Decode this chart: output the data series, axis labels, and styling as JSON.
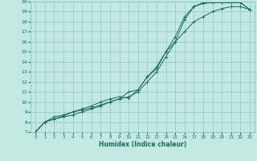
{
  "title": "",
  "xlabel": "Humidex (Indice chaleur)",
  "ylabel": "",
  "bg_color": "#c2e8e2",
  "grid_color": "#8fc8c0",
  "line_color": "#1a6b60",
  "xlim": [
    -0.5,
    23.5
  ],
  "ylim": [
    7,
    20
  ],
  "xticks": [
    0,
    1,
    2,
    3,
    4,
    5,
    6,
    7,
    8,
    9,
    10,
    11,
    12,
    13,
    14,
    15,
    16,
    17,
    18,
    19,
    20,
    21,
    22,
    23
  ],
  "yticks": [
    7,
    8,
    9,
    10,
    11,
    12,
    13,
    14,
    15,
    16,
    17,
    18,
    19,
    20
  ],
  "curve1_x": [
    0,
    1,
    2,
    3,
    4,
    5,
    6,
    7,
    8,
    9,
    10,
    11,
    12,
    13,
    14,
    15,
    16,
    17,
    18,
    19,
    20,
    21,
    22,
    23
  ],
  "curve1_y": [
    7.0,
    8.0,
    8.3,
    8.5,
    8.7,
    9.0,
    9.3,
    9.6,
    10.0,
    10.3,
    10.5,
    11.0,
    12.0,
    13.0,
    14.5,
    16.0,
    18.2,
    19.5,
    19.9,
    19.9,
    19.9,
    19.9,
    19.9,
    19.2
  ],
  "curve2_x": [
    0,
    1,
    2,
    3,
    4,
    5,
    6,
    7,
    8,
    9,
    10,
    11,
    12,
    13,
    14,
    15,
    16,
    17,
    18,
    19,
    20,
    21,
    22,
    23
  ],
  "curve2_y": [
    7.0,
    8.0,
    8.5,
    8.7,
    9.0,
    9.2,
    9.4,
    9.7,
    10.0,
    10.3,
    11.0,
    11.2,
    12.5,
    13.5,
    15.0,
    16.5,
    18.5,
    19.5,
    19.8,
    19.9,
    19.9,
    19.9,
    19.9,
    19.2
  ],
  "curve3_x": [
    0,
    1,
    2,
    3,
    4,
    5,
    6,
    7,
    8,
    9,
    10,
    11,
    12,
    13,
    14,
    15,
    16,
    17,
    18,
    19,
    20,
    21,
    22,
    23
  ],
  "curve3_y": [
    7.0,
    8.0,
    8.3,
    8.6,
    9.0,
    9.3,
    9.6,
    10.0,
    10.3,
    10.5,
    10.4,
    11.2,
    12.5,
    13.3,
    15.0,
    16.0,
    17.0,
    18.0,
    18.5,
    19.0,
    19.3,
    19.5,
    19.5,
    19.2
  ]
}
